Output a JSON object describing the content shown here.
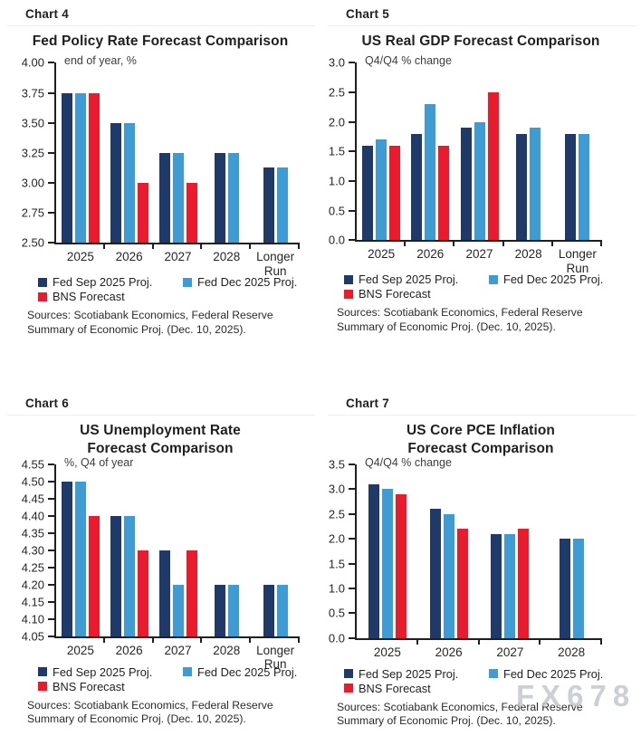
{
  "watermark": "FX678",
  "colors": {
    "fed_sep_navy": "#1F3A68",
    "fed_dec_blue": "#3F9BD3",
    "bns_red": "#EA1B2C",
    "axis": "#1F1F1F",
    "divider": "#EDEDED",
    "watermark_gray": "#C3C8CE"
  },
  "legend": {
    "items": [
      {
        "label": "Fed Sep 2025 Proj.",
        "color_hex": "#1F3A68"
      },
      {
        "label": "Fed Dec 2025 Proj.",
        "color_hex": "#3F9BD3"
      },
      {
        "label": "BNS Forecast",
        "color_hex": "#EA1B2C"
      }
    ]
  },
  "sources": {
    "line1": "Sources: Scotiabank Economics, Federal Reserve",
    "line2": "Summary of Economic Proj. (Dec. 10, 2025)."
  },
  "chart_data": [
    {
      "type": "bar",
      "panel_label": "Chart 4",
      "title": "Fed Policy Rate Forecast Comparison",
      "title_lines": [
        "Fed Policy Rate Forecast Comparison"
      ],
      "subtitle": "end of year, %",
      "categories": [
        "2025",
        "2026",
        "2027",
        "2028",
        "Longer Run"
      ],
      "series": [
        {
          "name": "Fed Sep 2025 Proj.",
          "color": "#1F3A68",
          "values": [
            3.75,
            3.5,
            3.25,
            3.25,
            3.13
          ]
        },
        {
          "name": "Fed Dec 2025 Proj.",
          "color": "#3F9BD3",
          "values": [
            3.75,
            3.5,
            3.25,
            3.25,
            3.13
          ]
        },
        {
          "name": "BNS Forecast",
          "color": "#EA1B2C",
          "values": [
            3.75,
            3.0,
            3.0,
            null,
            null
          ]
        }
      ],
      "ylim": [
        2.5,
        4.0
      ],
      "ytick_step": 0.25,
      "ytick_decimals": 2,
      "grid": false,
      "legend_position": "bottom"
    },
    {
      "type": "bar",
      "panel_label": "Chart 5",
      "title": "US Real GDP Forecast Comparison",
      "title_lines": [
        "US Real GDP Forecast Comparison"
      ],
      "subtitle": "Q4/Q4 % change",
      "categories": [
        "2025",
        "2026",
        "2027",
        "2028",
        "Longer Run"
      ],
      "series": [
        {
          "name": "Fed Sep 2025 Proj.",
          "color": "#1F3A68",
          "values": [
            1.6,
            1.8,
            1.9,
            1.8,
            1.8
          ]
        },
        {
          "name": "Fed Dec 2025 Proj.",
          "color": "#3F9BD3",
          "values": [
            1.7,
            2.3,
            2.0,
            1.9,
            1.8
          ]
        },
        {
          "name": "BNS Forecast",
          "color": "#EA1B2C",
          "values": [
            1.6,
            1.6,
            2.5,
            null,
            null
          ]
        }
      ],
      "ylim": [
        0.0,
        3.0
      ],
      "ytick_step": 0.5,
      "ytick_decimals": 1,
      "grid": false,
      "legend_position": "bottom"
    },
    {
      "type": "bar",
      "panel_label": "Chart 6",
      "title": "US Unemployment Rate Forecast Comparison",
      "title_lines": [
        "US Unemployment Rate",
        "Forecast Comparison"
      ],
      "subtitle": "%, Q4 of year",
      "categories": [
        "2025",
        "2026",
        "2027",
        "2028",
        "Longer Run"
      ],
      "series": [
        {
          "name": "Fed Sep 2025 Proj.",
          "color": "#1F3A68",
          "values": [
            4.5,
            4.4,
            4.3,
            4.2,
            4.2
          ]
        },
        {
          "name": "Fed Dec 2025 Proj.",
          "color": "#3F9BD3",
          "values": [
            4.5,
            4.4,
            4.2,
            4.2,
            4.2
          ]
        },
        {
          "name": "BNS Forecast",
          "color": "#EA1B2C",
          "values": [
            4.4,
            4.3,
            4.3,
            null,
            null
          ]
        }
      ],
      "ylim": [
        4.05,
        4.55
      ],
      "ytick_step": 0.05,
      "ytick_decimals": 2,
      "grid": false,
      "legend_position": "bottom"
    },
    {
      "type": "bar",
      "panel_label": "Chart 7",
      "title": "US Core PCE Inflation Forecast Comparison",
      "title_lines": [
        "US Core PCE Inflation",
        "Forecast Comparison"
      ],
      "subtitle": "Q4/Q4 % change",
      "categories": [
        "2025",
        "2026",
        "2027",
        "2028"
      ],
      "series": [
        {
          "name": "Fed Sep 2025 Proj.",
          "color": "#1F3A68",
          "values": [
            3.1,
            2.6,
            2.1,
            2.0
          ]
        },
        {
          "name": "Fed Dec 2025 Proj.",
          "color": "#3F9BD3",
          "values": [
            3.0,
            2.5,
            2.1,
            2.0
          ]
        },
        {
          "name": "BNS Forecast",
          "color": "#EA1B2C",
          "values": [
            2.9,
            2.2,
            2.2,
            null
          ]
        }
      ],
      "ylim": [
        0.0,
        3.5
      ],
      "ytick_step": 0.5,
      "ytick_decimals": 1,
      "grid": false,
      "legend_position": "bottom"
    }
  ]
}
